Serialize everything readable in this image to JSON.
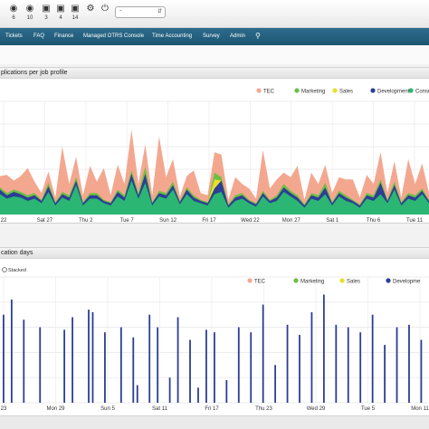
{
  "toolbar": {
    "items": [
      {
        "icon": "eye-icon",
        "count": "6"
      },
      {
        "icon": "eye-star-icon",
        "count": "10"
      },
      {
        "icon": "lock-icon",
        "count": "3"
      },
      {
        "icon": "lock-star-icon",
        "count": "4"
      },
      {
        "icon": "lock-icon",
        "count": "14"
      },
      {
        "icon": "gear-icon",
        "count": ""
      },
      {
        "icon": "power-icon",
        "count": ""
      }
    ],
    "select_value": "-",
    "colors": {
      "nav_bg": "#1f5a78",
      "nav_text": "#ffffff"
    }
  },
  "nav": {
    "items": [
      "Tickets",
      "FAQ",
      "Finance",
      "Managed OTRS Console",
      "Time Accounting",
      "Survey",
      "Admin"
    ],
    "search_icon": "search-icon"
  },
  "panel1": {
    "title": "plications per job profile",
    "chart_data": {
      "type": "area",
      "stacked": true,
      "legend_position": "top-right",
      "grid": true,
      "x_tick_labels": [
        "22",
        "Sat 27",
        "Thu 2",
        "Tue 7",
        "Sun 12",
        "Fri 17",
        "Wed 22",
        "Mon 27",
        "Sat 1",
        "Thu 6",
        "Tue 11"
      ],
      "ylim": [
        0,
        100
      ],
      "series": [
        {
          "name": "Consulting",
          "color": "#2bb673",
          "values": [
            18,
            14,
            16,
            15,
            12,
            14,
            10,
            20,
            8,
            15,
            12,
            26,
            8,
            14,
            14,
            10,
            8,
            16,
            12,
            30,
            14,
            28,
            8,
            16,
            14,
            22,
            9,
            18,
            12,
            10,
            8,
            18,
            20,
            6,
            12,
            14,
            10,
            7,
            16,
            10,
            12,
            20,
            16,
            12,
            6,
            14,
            12,
            18,
            8,
            16,
            12,
            10,
            6,
            14,
            12,
            18,
            10,
            22,
            8,
            14,
            12,
            18,
            10
          ]
        },
        {
          "name": "Development",
          "color": "#2c3e95",
          "values": [
            4,
            3,
            4,
            3,
            3,
            3,
            2,
            5,
            2,
            3,
            3,
            4,
            2,
            3,
            3,
            2,
            2,
            4,
            3,
            6,
            3,
            8,
            2,
            3,
            3,
            4,
            2,
            4,
            3,
            2,
            2,
            5,
            10,
            2,
            3,
            3,
            2,
            2,
            3,
            2,
            3,
            4,
            3,
            3,
            2,
            3,
            3,
            6,
            2,
            3,
            3,
            2,
            2,
            3,
            3,
            10,
            2,
            4,
            2,
            3,
            3,
            3,
            2
          ]
        },
        {
          "name": "Sales",
          "color": "#e8e02a",
          "values": [
            0,
            0,
            0,
            0,
            0,
            0,
            0,
            0,
            0,
            0,
            0,
            0,
            0,
            0,
            0,
            0,
            0,
            0,
            0,
            0,
            0,
            0,
            0,
            0,
            0,
            0,
            0,
            0,
            0,
            0,
            0,
            8,
            0,
            0,
            0,
            0,
            0,
            0,
            0,
            0,
            0,
            0,
            0,
            0,
            0,
            0,
            0,
            0,
            0,
            0,
            0,
            0,
            0,
            0,
            0,
            0,
            0,
            0,
            0,
            0,
            0,
            0,
            0
          ]
        },
        {
          "name": "Marketing",
          "color": "#6cbf45",
          "values": [
            2,
            2,
            2,
            2,
            2,
            2,
            1,
            3,
            1,
            2,
            2,
            3,
            1,
            2,
            2,
            1,
            1,
            2,
            2,
            3,
            2,
            6,
            1,
            2,
            2,
            3,
            1,
            2,
            2,
            1,
            1,
            6,
            3,
            1,
            2,
            2,
            1,
            1,
            2,
            1,
            2,
            3,
            2,
            2,
            1,
            2,
            2,
            4,
            1,
            2,
            2,
            1,
            1,
            2,
            2,
            3,
            1,
            3,
            1,
            2,
            2,
            2,
            1
          ]
        },
        {
          "name": "TEC",
          "color": "#f4a78f",
          "values": [
            10,
            16,
            8,
            14,
            24,
            10,
            6,
            10,
            4,
            40,
            10,
            18,
            6,
            24,
            10,
            28,
            6,
            22,
            10,
            36,
            8,
            20,
            6,
            48,
            14,
            20,
            4,
            10,
            22,
            6,
            6,
            18,
            20,
            4,
            16,
            8,
            10,
            4,
            36,
            10,
            14,
            10,
            12,
            26,
            4,
            18,
            10,
            16,
            8,
            12,
            14,
            18,
            6,
            16,
            10,
            24,
            6,
            18,
            4,
            30,
            10,
            22,
            6
          ]
        }
      ],
      "legend_order": [
        "TEC",
        "Marketing",
        "Sales",
        "Development",
        "Consulting"
      ],
      "legend_visible_labels": [
        "TEC",
        "Marketing",
        "Sales",
        "Development",
        "Consu"
      ]
    }
  },
  "panel2": {
    "title": "cation days",
    "stacked_toggle": "Stacked",
    "chart_data": {
      "type": "bar",
      "legend_position": "top-right",
      "grid": true,
      "x_tick_labels": [
        "23",
        "Mon 29",
        "Sun 5",
        "Sat 11",
        "Fri 17",
        "Thu 23",
        "Wed 29",
        "Tue 5",
        "Mon 11"
      ],
      "ylim": [
        0,
        100
      ],
      "series": [
        {
          "name": "Development",
          "color": "#2c3e95",
          "values": [
            70,
            0,
            82,
            0,
            0,
            66,
            0,
            0,
            0,
            60,
            0,
            0,
            0,
            0,
            0,
            58,
            0,
            68,
            0,
            0,
            0,
            74,
            72,
            0,
            0,
            56,
            0,
            0,
            0,
            60,
            0,
            0,
            52,
            14,
            0,
            0,
            70,
            0,
            60,
            0,
            0,
            20,
            0,
            68,
            0,
            0,
            50,
            0,
            12,
            0,
            58,
            0,
            56,
            0,
            0,
            18,
            0,
            0,
            60,
            0,
            0,
            56,
            0,
            0,
            78,
            0,
            0,
            30,
            0,
            0,
            62,
            0,
            0,
            54,
            0,
            0,
            72,
            0,
            0,
            86,
            0,
            0,
            62,
            0,
            0,
            60,
            0,
            0,
            56,
            0,
            0,
            70,
            0,
            0,
            46,
            0,
            0,
            60,
            0,
            0,
            62,
            0,
            0,
            50,
            0
          ]
        },
        {
          "name": "TEC",
          "color": "#f4a78f",
          "values": []
        },
        {
          "name": "Marketing",
          "color": "#6cbf45",
          "values": []
        },
        {
          "name": "Sales",
          "color": "#e8e02a",
          "values": []
        }
      ],
      "legend_order": [
        "TEC",
        "Marketing",
        "Sales",
        "Development"
      ],
      "legend_visible_labels": [
        "TEC",
        "Marketing",
        "Sales",
        "Developme"
      ]
    }
  }
}
